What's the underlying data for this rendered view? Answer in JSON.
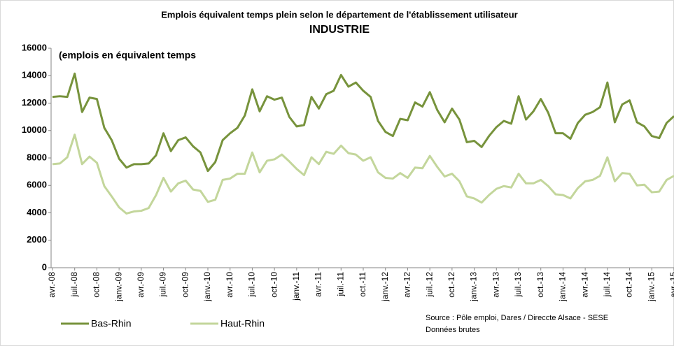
{
  "chart_data": {
    "type": "line",
    "title": "Emplois équivalent temps plein selon le département de l'établissement utilisateur",
    "subtitle": "INDUSTRIE",
    "annotation": "(emplois en équivalent temps",
    "source": [
      "Source : Pôle emploi, Dares / Direccte Alsace - SESE",
      "Données brutes"
    ],
    "categories": [
      "avr.-08",
      null,
      null,
      "juil.-08",
      null,
      null,
      "oct.-08",
      null,
      null,
      "janv.-09",
      null,
      null,
      "avr.-09",
      null,
      null,
      "juil.-09",
      null,
      null,
      "oct.-09",
      null,
      null,
      "janv.-10",
      null,
      null,
      "avr.-10",
      null,
      null,
      "juil.-10",
      null,
      null,
      "oct.-10",
      null,
      null,
      "janv.-11",
      null,
      null,
      "avr.-11",
      null,
      null,
      "juil.-11",
      null,
      null,
      "oct.-11",
      null,
      null,
      "janv.-12",
      null,
      null,
      "avr.-12",
      null,
      null,
      "juil.-12",
      null,
      null,
      "oct.-12",
      null,
      null,
      "janv.-13",
      null,
      null,
      "avr.-13",
      null,
      null,
      "juil.-13",
      null,
      null,
      "oct.-13",
      null,
      null,
      "janv.-14",
      null,
      null,
      "avr.-14",
      null,
      null,
      "juil.-14",
      null,
      null,
      "oct.-14",
      null,
      null,
      "janv.-15",
      null,
      null,
      "avr.-15"
    ],
    "series": [
      {
        "name": "Bas-Rhin",
        "color": "#77933c",
        "values": [
          12450,
          12500,
          12450,
          14150,
          11350,
          12400,
          12300,
          10200,
          9300,
          7950,
          7300,
          7550,
          7550,
          7600,
          8200,
          9800,
          8500,
          9300,
          9500,
          8850,
          8400,
          7050,
          7700,
          9300,
          9800,
          10200,
          11100,
          13000,
          11400,
          12500,
          12250,
          12400,
          11000,
          10300,
          10400,
          12450,
          11600,
          12650,
          12900,
          14050,
          13200,
          13500,
          12900,
          12450,
          10700,
          9900,
          9600,
          10850,
          10750,
          12050,
          11750,
          12800,
          11500,
          10600,
          11600,
          10800,
          9150,
          9250,
          8800,
          9600,
          10250,
          10700,
          10500,
          12500,
          10800,
          11400,
          12300,
          11300,
          9800,
          9800,
          9400,
          10550,
          11150,
          11350,
          11700,
          13500,
          10600,
          11900,
          12200,
          10600,
          10300,
          9600,
          9450,
          10550,
          11050
        ]
      },
      {
        "name": "Haut-Rhin",
        "color": "#c3d69b",
        "values": [
          7550,
          7600,
          8050,
          9700,
          7550,
          8100,
          7650,
          5950,
          5200,
          4400,
          3950,
          4100,
          4150,
          4350,
          5300,
          6550,
          5550,
          6150,
          6350,
          5700,
          5600,
          4800,
          4950,
          6400,
          6500,
          6850,
          6850,
          8400,
          6950,
          7800,
          7900,
          8250,
          7750,
          7200,
          6750,
          8050,
          7550,
          8450,
          8300,
          8900,
          8350,
          8250,
          7800,
          8050,
          6950,
          6550,
          6500,
          6900,
          6550,
          7300,
          7250,
          8150,
          7350,
          6650,
          6850,
          6300,
          5200,
          5050,
          4750,
          5300,
          5750,
          5950,
          5850,
          6850,
          6150,
          6150,
          6400,
          5950,
          5350,
          5300,
          5050,
          5800,
          6300,
          6400,
          6700,
          8050,
          6300,
          6900,
          6850,
          6000,
          6050,
          5500,
          5550,
          6400,
          6700
        ]
      }
    ],
    "ylim": [
      0,
      16000
    ],
    "yticks": [
      0,
      2000,
      4000,
      6000,
      8000,
      10000,
      12000,
      14000,
      16000
    ],
    "grid": false
  }
}
